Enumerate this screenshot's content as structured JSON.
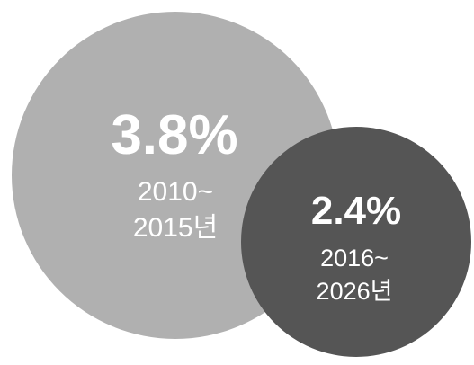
{
  "header": {
    "left_text": "",
    "right_text": ""
  },
  "chart_data": {
    "type": "bubble",
    "title": "",
    "series": [
      {
        "value": 3.8,
        "value_label": "3.8%",
        "period_lines": [
          "2010~",
          "2015년"
        ],
        "color": "#b0b0b0"
      },
      {
        "value": 2.4,
        "value_label": "2.4%",
        "period_lines": [
          "2016~",
          "2026년"
        ],
        "color": "#555555"
      }
    ]
  }
}
